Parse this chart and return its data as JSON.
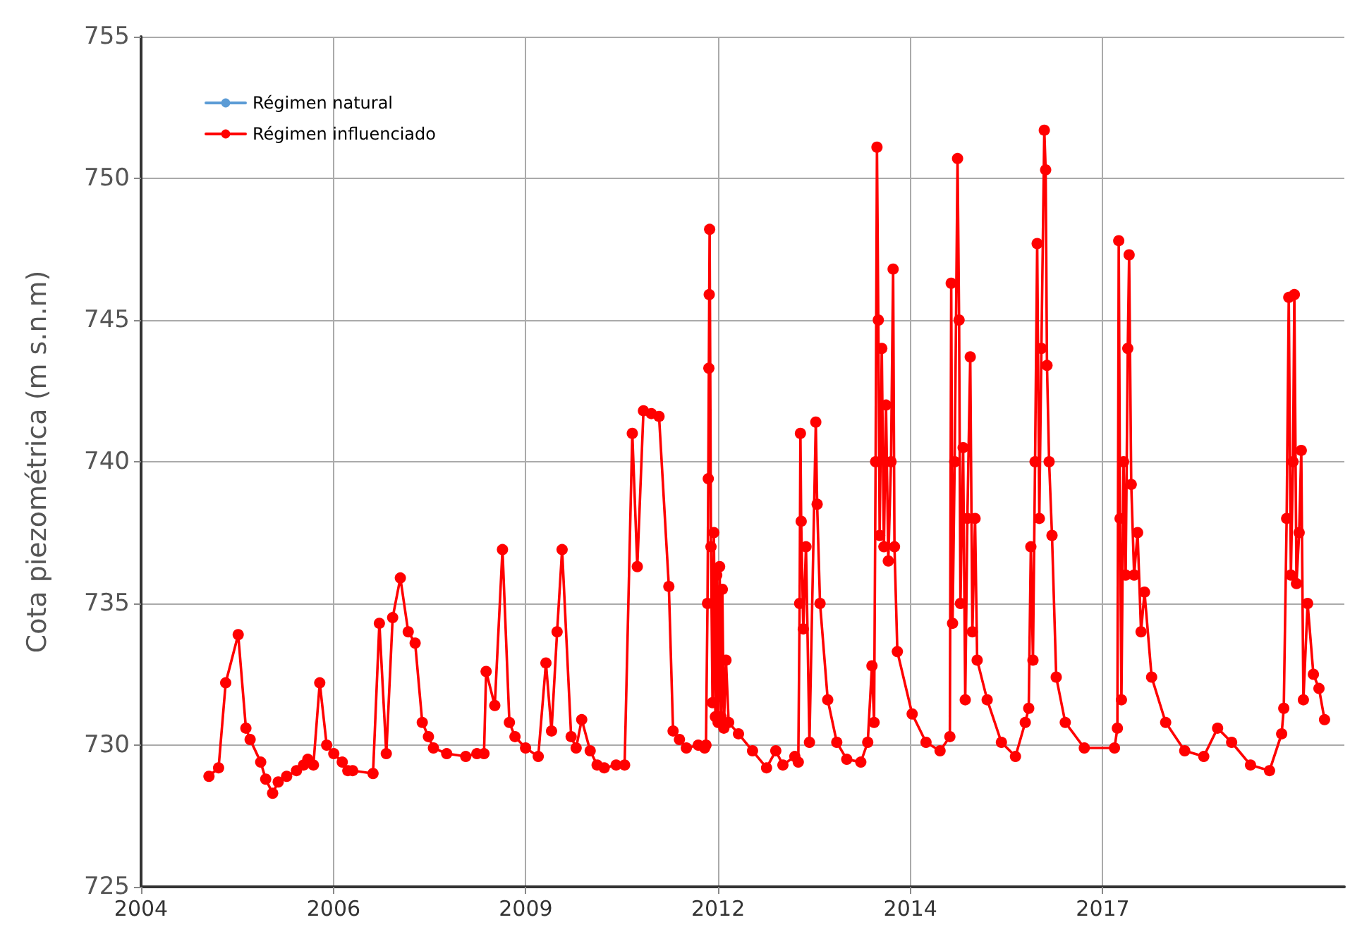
{
  "chart_data": {
    "type": "line",
    "ylabel": "Cota piezométrica (m s.n.m)",
    "xlim": [
      "2004-01-14",
      "2021-03-01"
    ],
    "xticks": [
      {
        "value": "2004-01-14",
        "label": "2004"
      },
      {
        "value": "2006-10-11",
        "label": "2006"
      },
      {
        "value": "2009-07-06",
        "label": "2009"
      },
      {
        "value": "2012-04-01",
        "label": "2012"
      },
      {
        "value": "2014-12-27",
        "label": "2014"
      },
      {
        "value": "2017-09-22",
        "label": "2017"
      }
    ],
    "ylim": [
      725,
      755
    ],
    "yticks": [
      725,
      730,
      735,
      740,
      745,
      750,
      755
    ],
    "grid": true,
    "legend": "top left",
    "marker": "circle",
    "line_style": "solid",
    "series": [
      {
        "name": "Régimen natural",
        "color": "#5b9bd5"
      },
      {
        "name": "Régimen influenciado",
        "color": "#ff0000",
        "x": [
          "2005-01-01",
          "2005-02-20",
          "2005-03-29",
          "2005-06-02",
          "2005-07-12",
          "2005-08-03",
          "2005-09-27",
          "2005-10-23",
          "2005-11-28",
          "2005-12-27",
          "2006-02-09",
          "2006-04-01",
          "2006-05-08",
          "2006-05-30",
          "2006-06-28",
          "2006-07-31",
          "2006-09-05",
          "2006-10-12",
          "2006-11-25",
          "2006-12-24",
          "2007-01-18",
          "2007-05-04",
          "2007-06-06",
          "2007-07-12",
          "2007-08-14",
          "2007-09-23",
          "2007-11-03",
          "2007-12-09",
          "2008-01-15",
          "2008-02-16",
          "2008-03-13",
          "2008-05-21",
          "2008-08-28",
          "2008-10-25",
          "2008-12-01",
          "2008-12-12",
          "2009-01-26",
          "2009-03-07",
          "2009-04-12",
          "2009-05-11",
          "2009-07-05",
          "2009-09-09",
          "2009-10-19",
          "2009-11-17",
          "2009-12-16",
          "2010-01-11",
          "2010-02-27",
          "2010-03-25",
          "2010-04-23",
          "2010-06-06",
          "2010-07-12",
          "2010-08-18",
          "2010-10-19",
          "2010-12-02",
          "2011-01-11",
          "2011-02-06",
          "2011-03-10",
          "2011-04-20",
          "2011-05-30",
          "2011-07-20",
          "2011-08-11",
          "2011-09-13",
          "2011-10-19",
          "2011-12-20",
          "2012-01-22",
          "2012-01-29",
          "2012-02-06",
          "2012-02-10",
          "2012-02-13",
          "2012-02-15",
          "2012-02-17",
          "2012-02-24",
          "2012-03-03",
          "2012-03-10",
          "2012-03-18",
          "2012-03-25",
          "2012-04-01",
          "2012-04-09",
          "2012-04-16",
          "2012-04-23",
          "2012-05-01",
          "2012-05-12",
          "2012-05-26",
          "2012-07-16",
          "2012-09-27",
          "2012-12-09",
          "2013-01-26",
          "2013-03-04",
          "2013-05-05",
          "2013-05-23",
          "2013-05-30",
          "2013-06-03",
          "2013-06-07",
          "2013-06-18",
          "2013-07-02",
          "2013-07-20",
          "2013-08-22",
          "2013-08-29",
          "2013-09-13",
          "2013-10-23",
          "2013-12-09",
          "2014-01-30",
          "2014-04-13",
          "2014-05-19",
          "2014-06-10",
          "2014-06-21",
          "2014-06-29",
          "2014-07-06",
          "2014-07-13",
          "2014-07-20",
          "2014-07-31",
          "2014-08-11",
          "2014-08-22",
          "2014-09-03",
          "2014-09-17",
          "2014-09-28",
          "2014-10-05",
          "2014-10-20",
          "2015-01-05",
          "2015-03-18",
          "2015-05-30",
          "2015-07-20",
          "2015-07-27",
          "2015-08-03",
          "2015-08-14",
          "2015-08-29",
          "2015-09-06",
          "2015-09-13",
          "2015-09-27",
          "2015-10-08",
          "2015-10-19",
          "2015-11-03",
          "2015-11-14",
          "2015-11-28",
          "2015-12-09",
          "2016-01-30",
          "2016-04-13",
          "2016-06-25",
          "2016-08-15",
          "2016-09-02",
          "2016-09-13",
          "2016-09-24",
          "2016-10-05",
          "2016-10-16",
          "2016-10-27",
          "2016-11-07",
          "2016-11-22",
          "2016-11-29",
          "2016-12-06",
          "2016-12-17",
          "2017-01-01",
          "2017-01-23",
          "2017-03-11",
          "2017-06-18",
          "2017-11-22",
          "2017-12-07",
          "2017-12-14",
          "2017-12-21",
          "2017-12-28",
          "2018-01-08",
          "2018-01-19",
          "2018-01-30",
          "2018-02-06",
          "2018-02-17",
          "2018-03-04",
          "2018-03-22",
          "2018-04-09",
          "2018-04-27",
          "2018-06-03",
          "2018-08-15",
          "2018-11-22",
          "2019-03-01",
          "2019-05-12",
          "2019-07-24",
          "2019-10-30",
          "2020-02-06",
          "2020-04-09",
          "2020-04-20",
          "2020-05-05",
          "2020-05-16",
          "2020-05-27",
          "2020-06-07",
          "2020-06-14",
          "2020-06-25",
          "2020-07-09",
          "2020-07-20",
          "2020-07-31",
          "2020-08-22",
          "2020-09-21",
          "2020-10-20",
          "2020-11-18"
        ],
        "values": [
          728.9,
          729.2,
          732.2,
          733.9,
          730.6,
          730.2,
          729.4,
          728.8,
          728.3,
          728.7,
          728.9,
          729.1,
          729.3,
          729.5,
          729.3,
          732.2,
          730.0,
          729.7,
          729.4,
          729.1,
          729.1,
          729.0,
          734.3,
          729.7,
          734.5,
          735.9,
          734.0,
          733.6,
          730.8,
          730.3,
          729.9,
          729.7,
          729.6,
          729.7,
          729.7,
          732.6,
          731.4,
          736.9,
          730.8,
          730.3,
          729.9,
          729.6,
          732.9,
          730.5,
          734.0,
          736.9,
          730.3,
          729.9,
          730.9,
          729.8,
          729.3,
          729.2,
          729.3,
          729.3,
          741.0,
          736.3,
          741.8,
          741.7,
          741.6,
          735.6,
          730.5,
          730.2,
          729.9,
          730.0,
          729.9,
          730.0,
          735.0,
          739.4,
          743.3,
          745.9,
          748.2,
          737.0,
          731.5,
          737.5,
          731.0,
          736.0,
          730.8,
          736.3,
          731.0,
          735.5,
          730.6,
          733.0,
          730.8,
          730.4,
          729.8,
          729.2,
          729.8,
          729.3,
          729.6,
          729.4,
          735.0,
          741.0,
          737.9,
          734.1,
          737.0,
          730.1,
          741.4,
          738.5,
          735.0,
          731.6,
          730.1,
          729.5,
          729.4,
          730.1,
          732.8,
          730.8,
          740.0,
          751.1,
          745.0,
          737.4,
          744.0,
          737.0,
          742.0,
          736.5,
          740.0,
          746.8,
          737.0,
          733.3,
          731.1,
          730.1,
          729.8,
          730.3,
          746.3,
          734.3,
          740.0,
          750.7,
          745.0,
          735.0,
          740.5,
          731.6,
          738.0,
          743.7,
          734.0,
          738.0,
          733.0,
          731.6,
          730.1,
          729.6,
          730.8,
          731.3,
          737.0,
          733.0,
          740.0,
          747.7,
          738.0,
          744.0,
          751.7,
          750.3,
          743.4,
          740.0,
          737.4,
          732.4,
          730.8,
          729.9,
          729.9,
          730.6,
          747.8,
          738.0,
          731.6,
          740.0,
          736.0,
          744.0,
          747.3,
          739.2,
          736.0,
          737.5,
          734.0,
          735.4,
          732.4,
          730.8,
          729.8,
          729.6,
          730.6,
          730.1,
          729.3,
          729.1,
          730.4,
          731.3,
          738.0,
          745.8,
          736.0,
          740.0,
          745.9,
          735.7,
          737.5,
          740.4,
          731.6,
          735.0,
          732.5,
          732.0,
          730.9
        ]
      }
    ]
  }
}
